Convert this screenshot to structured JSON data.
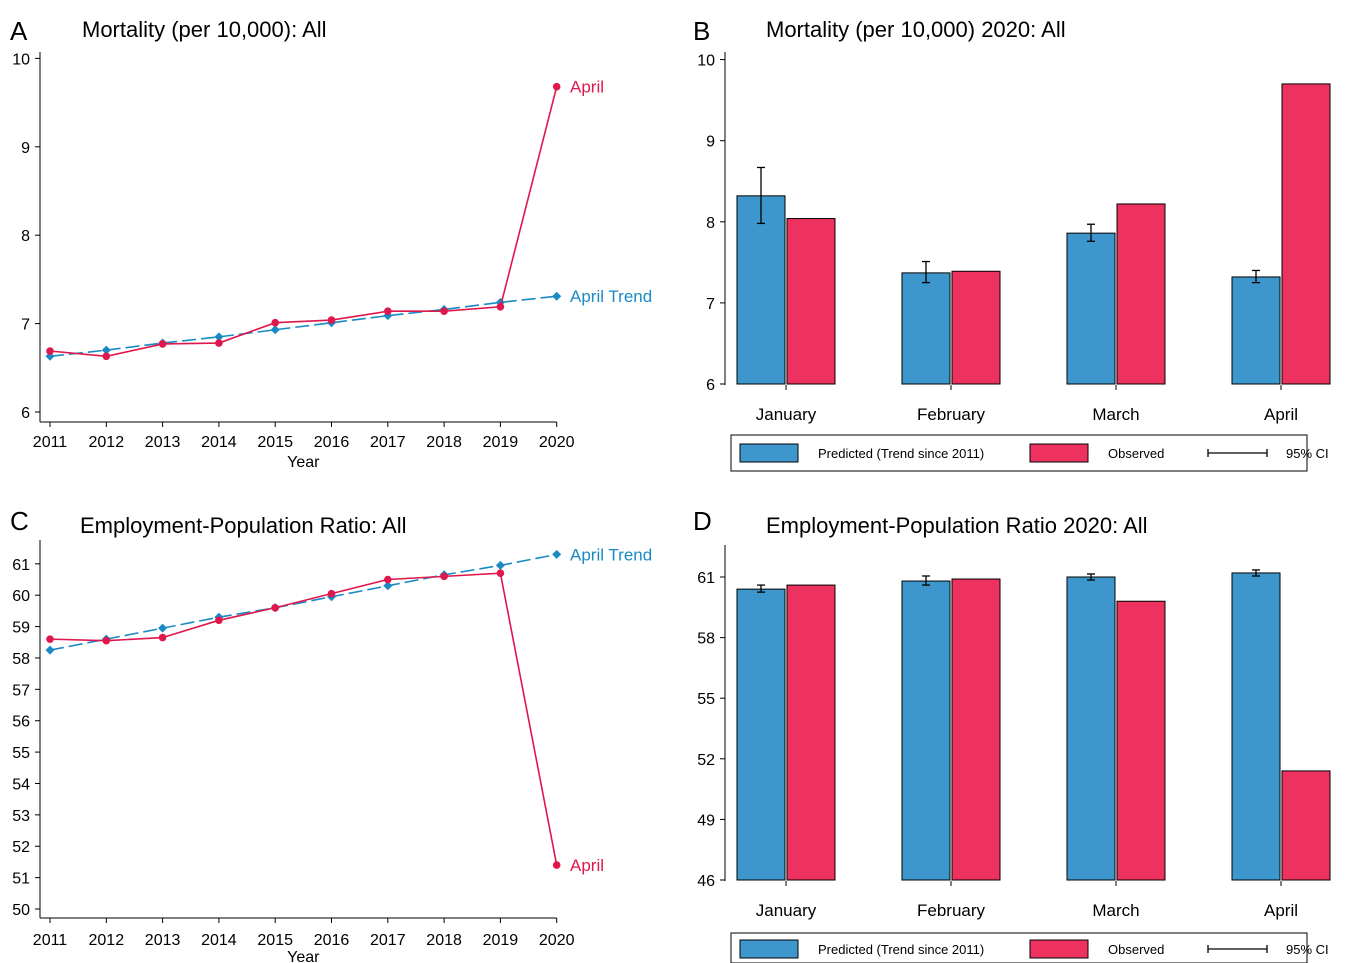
{
  "colors": {
    "trend": "#1a8ac4",
    "observed": "#e0174c",
    "predicted_bar": "#3d97cd",
    "observed_bar": "#ee3260"
  },
  "panels": [
    {
      "letter": "A",
      "title": "Mortality (per 10,000): All",
      "chart_data": {
        "type": "line",
        "xlabel": "Year",
        "ylabel": "",
        "x": [
          2011,
          2012,
          2013,
          2014,
          2015,
          2016,
          2017,
          2018,
          2019,
          2020
        ],
        "yticks": [
          6,
          7,
          8,
          9,
          10
        ],
        "ylim": [
          5.9,
          10.1
        ],
        "series": [
          {
            "name": "April",
            "values": [
              6.69,
              6.63,
              6.77,
              6.78,
              7.01,
              7.04,
              7.14,
              7.14,
              7.19,
              9.68
            ],
            "style": "solid",
            "marker": "circle"
          },
          {
            "name": "April Trend",
            "values": [
              6.63,
              6.7,
              6.78,
              6.85,
              6.93,
              7.01,
              7.09,
              7.16,
              7.24,
              7.31
            ],
            "style": "dashed",
            "marker": "diamond"
          }
        ]
      }
    },
    {
      "letter": "B",
      "title": "Mortality (per 10,000) 2020: All",
      "chart_data": {
        "type": "bar",
        "categories": [
          "January",
          "February",
          "March",
          "April"
        ],
        "yticks": [
          6,
          7,
          8,
          9,
          10
        ],
        "ylim": [
          6,
          10.1
        ],
        "series": [
          {
            "name": "Predicted (Trend since 2011)",
            "values": [
              8.32,
              7.37,
              7.86,
              7.32
            ],
            "ci_low": [
              7.98,
              7.25,
              7.76,
              7.25
            ],
            "ci_high": [
              8.67,
              7.51,
              7.97,
              7.4
            ]
          },
          {
            "name": "Observed",
            "values": [
              8.04,
              7.39,
              8.22,
              9.7
            ]
          }
        ],
        "legend": {
          "ci_label": "95% CI",
          "position": "bottom"
        }
      }
    },
    {
      "letter": "C",
      "title": "Employment-Population Ratio: All",
      "chart_data": {
        "type": "line",
        "xlabel": "Year",
        "ylabel": "",
        "x": [
          2011,
          2012,
          2013,
          2014,
          2015,
          2016,
          2017,
          2018,
          2019,
          2020
        ],
        "yticks": [
          50,
          51,
          52,
          53,
          54,
          55,
          56,
          57,
          58,
          59,
          60,
          61
        ],
        "ylim": [
          49.7,
          61.7
        ],
        "series": [
          {
            "name": "April",
            "values": [
              58.6,
              58.55,
              58.65,
              59.2,
              59.6,
              60.05,
              60.5,
              60.6,
              60.7,
              51.4
            ],
            "style": "solid",
            "marker": "circle"
          },
          {
            "name": "April Trend",
            "values": [
              58.25,
              58.6,
              58.95,
              59.3,
              59.6,
              59.95,
              60.3,
              60.65,
              60.95,
              61.3
            ],
            "style": "dashed",
            "marker": "diamond"
          }
        ]
      }
    },
    {
      "letter": "D",
      "title": "Employment-Population Ratio 2020: All",
      "chart_data": {
        "type": "bar",
        "categories": [
          "January",
          "February",
          "March",
          "April"
        ],
        "yticks": [
          46,
          49,
          52,
          55,
          58,
          61
        ],
        "ylim": [
          46,
          62
        ],
        "series": [
          {
            "name": "Predicted (Trend since 2011)",
            "values": [
              60.4,
              60.8,
              61.0,
              61.2
            ],
            "ci_low": [
              60.25,
              60.6,
              60.85,
              61.05
            ],
            "ci_high": [
              60.6,
              61.05,
              61.15,
              61.35
            ]
          },
          {
            "name": "Observed",
            "values": [
              60.6,
              60.9,
              59.8,
              51.4
            ]
          }
        ],
        "legend": {
          "ci_label": "95% CI",
          "position": "bottom"
        }
      }
    }
  ]
}
